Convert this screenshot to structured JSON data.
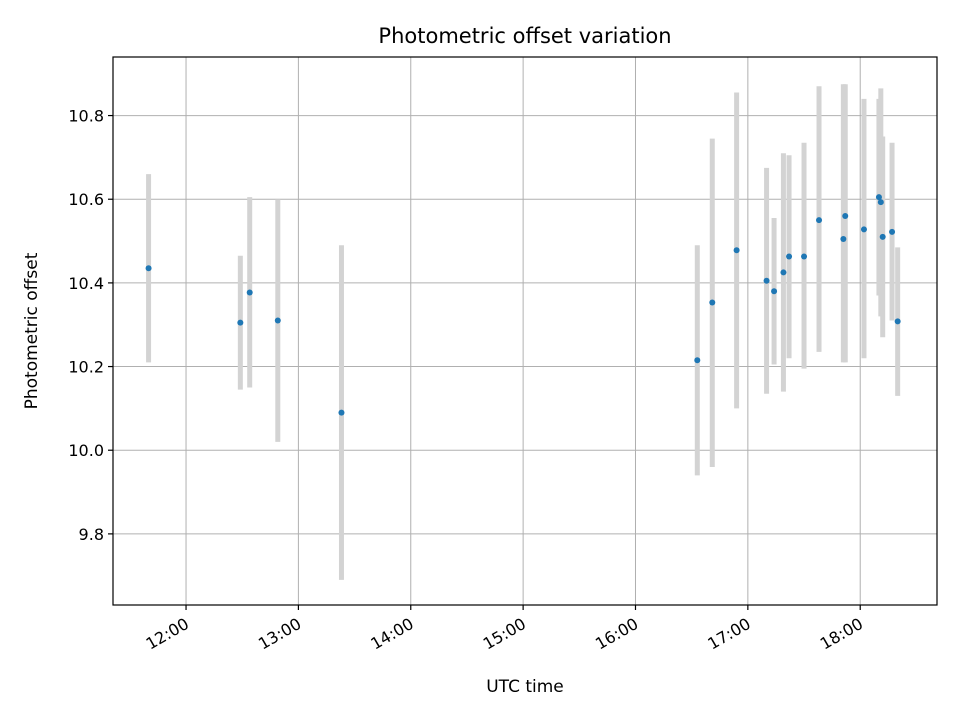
{
  "chart_data": {
    "type": "scatter",
    "title": "Photometric offset variation",
    "xlabel": "UTC time",
    "ylabel": "Photometric offset",
    "grid": true,
    "x_tick_labels": [
      "12:00",
      "13:00",
      "14:00",
      "15:00",
      "16:00",
      "17:00",
      "18:00"
    ],
    "y_tick_labels": [
      "9.8",
      "10.0",
      "10.2",
      "10.4",
      "10.6",
      "10.8"
    ],
    "xlim": [
      "11:21",
      "18:41"
    ],
    "ylim": [
      9.63,
      10.94
    ],
    "colors": {
      "point": "#1f77b4",
      "errorbar": "#d3d3d3",
      "grid": "#b0b0b0"
    },
    "points": [
      {
        "x": "11:40",
        "y": 10.435,
        "low": 10.21,
        "high": 10.66
      },
      {
        "x": "12:29",
        "y": 10.305,
        "low": 10.145,
        "high": 10.465
      },
      {
        "x": "12:34",
        "y": 10.377,
        "low": 10.15,
        "high": 10.605
      },
      {
        "x": "12:49",
        "y": 10.31,
        "low": 10.02,
        "high": 10.6
      },
      {
        "x": "13:23",
        "y": 10.09,
        "low": 9.69,
        "high": 10.49
      },
      {
        "x": "16:33",
        "y": 10.215,
        "low": 9.94,
        "high": 10.49
      },
      {
        "x": "16:41",
        "y": 10.353,
        "low": 9.96,
        "high": 10.745
      },
      {
        "x": "16:54",
        "y": 10.478,
        "low": 10.1,
        "high": 10.855
      },
      {
        "x": "17:10",
        "y": 10.405,
        "low": 10.135,
        "high": 10.675
      },
      {
        "x": "17:14",
        "y": 10.38,
        "low": 10.205,
        "high": 10.555
      },
      {
        "x": "17:19",
        "y": 10.425,
        "low": 10.14,
        "high": 10.71
      },
      {
        "x": "17:22",
        "y": 10.463,
        "low": 10.22,
        "high": 10.705
      },
      {
        "x": "17:30",
        "y": 10.463,
        "low": 10.195,
        "high": 10.735
      },
      {
        "x": "17:38",
        "y": 10.55,
        "low": 10.235,
        "high": 10.87
      },
      {
        "x": "17:51",
        "y": 10.505,
        "low": 10.21,
        "high": 10.875
      },
      {
        "x": "17:52",
        "y": 10.56,
        "low": 10.21,
        "high": 10.875
      },
      {
        "x": "18:02",
        "y": 10.528,
        "low": 10.22,
        "high": 10.84
      },
      {
        "x": "18:10",
        "y": 10.605,
        "low": 10.37,
        "high": 10.84
      },
      {
        "x": "18:11",
        "y": 10.593,
        "low": 10.32,
        "high": 10.865
      },
      {
        "x": "18:12",
        "y": 10.51,
        "low": 10.27,
        "high": 10.75
      },
      {
        "x": "18:17",
        "y": 10.522,
        "low": 10.31,
        "high": 10.735
      },
      {
        "x": "18:20",
        "y": 10.308,
        "low": 10.13,
        "high": 10.485
      }
    ]
  }
}
